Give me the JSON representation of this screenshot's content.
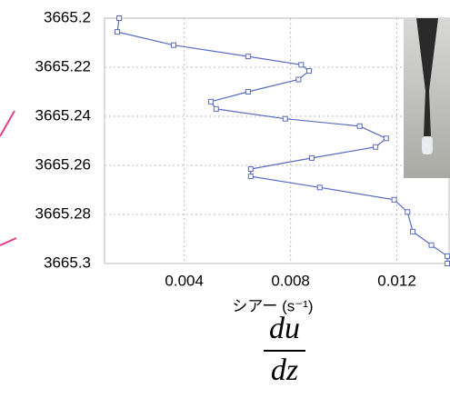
{
  "chart_data": {
    "type": "line",
    "xlabel": "シアー (s⁻¹)",
    "formula_numerator": "du",
    "formula_denominator": "dz",
    "x": [
      0.00155,
      0.00148,
      0.0036,
      0.0064,
      0.0084,
      0.0087,
      0.0083,
      0.0064,
      0.005,
      0.0052,
      0.0078,
      0.0106,
      0.0116,
      0.0112,
      0.0088,
      0.0065,
      0.0065,
      0.0091,
      0.0119,
      0.0124,
      0.0126,
      0.0133,
      0.0139,
      0.0139
    ],
    "y": [
      3665.2,
      3665.2056,
      3665.211,
      3665.2156,
      3665.219,
      3665.2215,
      3665.225,
      3665.23,
      3665.234,
      3665.237,
      3665.241,
      3665.244,
      3665.249,
      3665.2525,
      3665.257,
      3665.2615,
      3665.2645,
      3665.269,
      3665.274,
      3665.279,
      3665.287,
      3665.2925,
      3665.297,
      3665.3
    ],
    "color": "#5a6bbf",
    "xlim": [
      0.001,
      0.014
    ],
    "ylim": [
      3665.2,
      3665.3
    ],
    "y_inverted": true,
    "xticks": [
      0.004,
      0.008,
      0.012
    ],
    "yticks": [
      3665.2,
      3665.22,
      3665.24,
      3665.26,
      3665.28,
      3665.3
    ],
    "grid": true
  }
}
